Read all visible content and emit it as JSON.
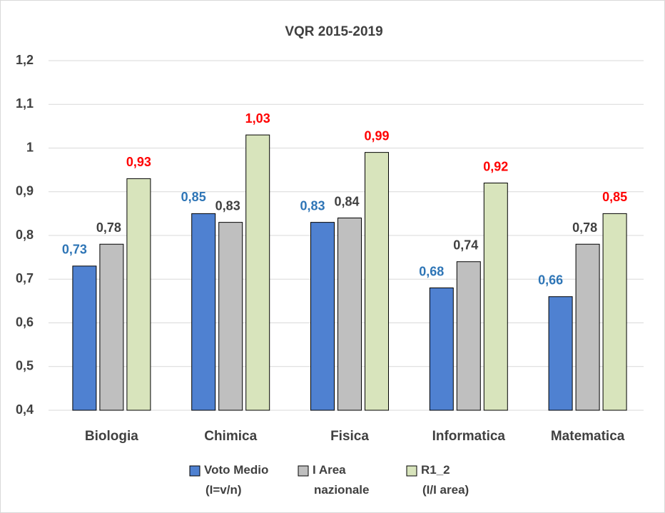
{
  "chart_data": {
    "type": "bar",
    "title": "VQR 2015-2019",
    "categories": [
      "Biologia",
      "Chimica",
      "Fisica",
      "Informatica",
      "Matematica"
    ],
    "series": [
      {
        "name": "Voto Medio\n(I=v/n)",
        "color": "#4f81d1",
        "label_color": "#2e75b6",
        "values": [
          0.73,
          0.85,
          0.83,
          0.68,
          0.66
        ],
        "value_labels": [
          "0,73",
          "0,85",
          "0,83",
          "0,68",
          "0,66"
        ]
      },
      {
        "name": "I Area\nnazionale",
        "color": "#bfbfbf",
        "label_color": "#404040",
        "values": [
          0.78,
          0.83,
          0.84,
          0.74,
          0.78
        ],
        "value_labels": [
          "0,78",
          "0,83",
          "0,84",
          "0,74",
          "0,78"
        ]
      },
      {
        "name": "R1_2\n(I/I area)",
        "color": "#d8e4bc",
        "label_color": "#ff0000",
        "values": [
          0.93,
          1.03,
          0.99,
          0.92,
          0.85
        ],
        "value_labels": [
          "0,93",
          "1,03",
          "0,99",
          "0,92",
          "0,85"
        ]
      }
    ],
    "ylim": [
      0.4,
      1.2
    ],
    "yticks": [
      {
        "value": 0.4,
        "label": "0,4"
      },
      {
        "value": 0.5,
        "label": "0,5"
      },
      {
        "value": 0.6,
        "label": "0,6"
      },
      {
        "value": 0.7,
        "label": "0,7"
      },
      {
        "value": 0.8,
        "label": "0,8"
      },
      {
        "value": 0.9,
        "label": "0,9"
      },
      1,
      {
        "value": 1.1,
        "label": "1,1"
      },
      {
        "value": 1.2,
        "label": "1,2"
      }
    ],
    "grid": true,
    "legend": "bottom"
  }
}
